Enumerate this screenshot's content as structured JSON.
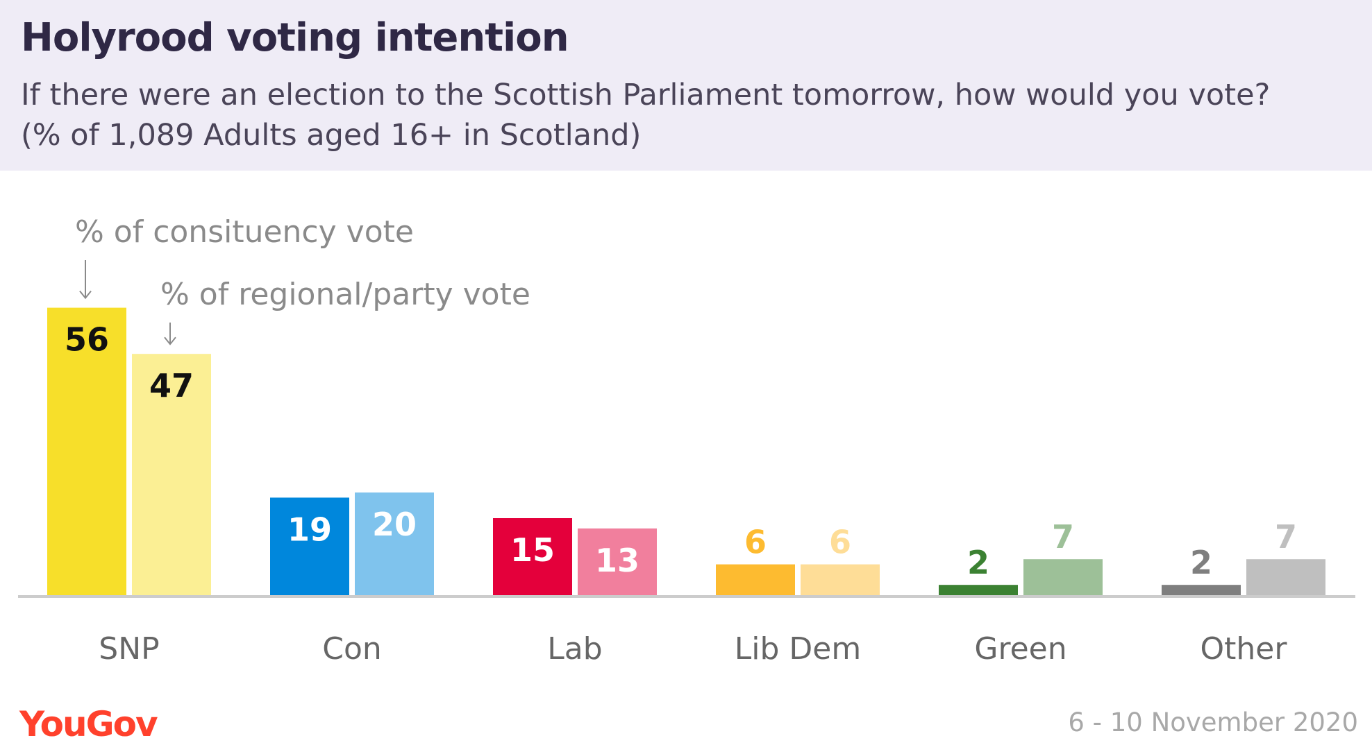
{
  "header": {
    "title": "Holyrood voting intention",
    "subtitle_line1": "If there were an election to the Scottish Parliament tomorrow, how would you vote?",
    "subtitle_line2": "(% of 1,089 Adults aged 16+ in Scotland)"
  },
  "footer": {
    "logo_text": "YouGov",
    "date": "6 - 10 November 2020"
  },
  "chart_data": {
    "type": "bar",
    "categories": [
      "SNP",
      "Con",
      "Lab",
      "Lib Dem",
      "Green",
      "Other"
    ],
    "series": [
      {
        "name": "% of consituency vote",
        "values": [
          56,
          19,
          15,
          6,
          2,
          2
        ],
        "colors": [
          "#f7df2a",
          "#0087dc",
          "#e4003b",
          "#fdbb30",
          "#3b8132",
          "#7f7f7f"
        ]
      },
      {
        "name": "% of regional/party vote",
        "values": [
          47,
          20,
          13,
          6,
          7,
          7
        ],
        "colors": [
          "#fbef94",
          "#7fc3ed",
          "#f17f9d",
          "#fedd97",
          "#9dc098",
          "#bfbfbf"
        ]
      }
    ],
    "label_colors": [
      [
        "#111111",
        "#ffffff",
        "#ffffff",
        "#fdbb30",
        "#3b8132",
        "#7f7f7f"
      ],
      [
        "#111111",
        "#ffffff",
        "#ffffff",
        "#fedd97",
        "#9dc098",
        "#bfbfbf"
      ]
    ],
    "ylim": [
      0,
      60
    ],
    "legend_placement": "annotated-arrows-top-left",
    "grid": false
  }
}
